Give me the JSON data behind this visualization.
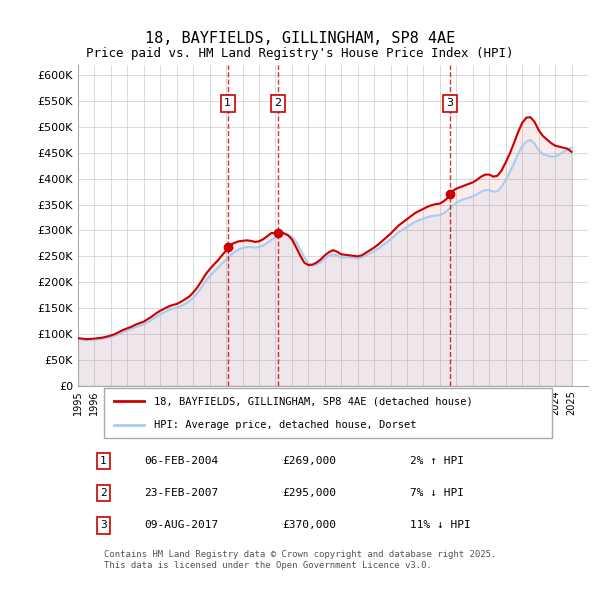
{
  "title": "18, BAYFIELDS, GILLINGHAM, SP8 4AE",
  "subtitle": "Price paid vs. HM Land Registry's House Price Index (HPI)",
  "ylabel": "",
  "xlabel": "",
  "ylim": [
    0,
    620000
  ],
  "yticks": [
    0,
    50000,
    100000,
    150000,
    200000,
    250000,
    300000,
    350000,
    400000,
    450000,
    500000,
    550000,
    600000
  ],
  "ytick_labels": [
    "£0",
    "£50K",
    "£100K",
    "£150K",
    "£200K",
    "£250K",
    "£300K",
    "£350K",
    "£400K",
    "£450K",
    "£500K",
    "£550K",
    "£600K"
  ],
  "xlim_start": 1995.0,
  "xlim_end": 2026.0,
  "legend_property": "18, BAYFIELDS, GILLINGHAM, SP8 4AE (detached house)",
  "legend_hpi": "HPI: Average price, detached house, Dorset",
  "property_line_color": "#cc0000",
  "hpi_line_color": "#aaccee",
  "sales": [
    {
      "num": 1,
      "date": "06-FEB-2004",
      "year": 2004.1,
      "price": 269000,
      "pct": "2%",
      "dir": "↑"
    },
    {
      "num": 2,
      "date": "23-FEB-2007",
      "year": 2007.15,
      "price": 295000,
      "pct": "7%",
      "dir": "↓"
    },
    {
      "num": 3,
      "date": "09-AUG-2017",
      "year": 2017.6,
      "price": 370000,
      "pct": "11%",
      "dir": "↓"
    }
  ],
  "footer": "Contains HM Land Registry data © Crown copyright and database right 2025.\nThis data is licensed under the Open Government Licence v3.0.",
  "background_color": "#ffffff",
  "grid_color": "#cccccc",
  "hpi_data": {
    "years": [
      1995.0,
      1995.25,
      1995.5,
      1995.75,
      1996.0,
      1996.25,
      1996.5,
      1996.75,
      1997.0,
      1997.25,
      1997.5,
      1997.75,
      1998.0,
      1998.25,
      1998.5,
      1998.75,
      1999.0,
      1999.25,
      1999.5,
      1999.75,
      2000.0,
      2000.25,
      2000.5,
      2000.75,
      2001.0,
      2001.25,
      2001.5,
      2001.75,
      2002.0,
      2002.25,
      2002.5,
      2002.75,
      2003.0,
      2003.25,
      2003.5,
      2003.75,
      2004.0,
      2004.25,
      2004.5,
      2004.75,
      2005.0,
      2005.25,
      2005.5,
      2005.75,
      2006.0,
      2006.25,
      2006.5,
      2006.75,
      2007.0,
      2007.25,
      2007.5,
      2007.75,
      2008.0,
      2008.25,
      2008.5,
      2008.75,
      2009.0,
      2009.25,
      2009.5,
      2009.75,
      2010.0,
      2010.25,
      2010.5,
      2010.75,
      2011.0,
      2011.25,
      2011.5,
      2011.75,
      2012.0,
      2012.25,
      2012.5,
      2012.75,
      2013.0,
      2013.25,
      2013.5,
      2013.75,
      2014.0,
      2014.25,
      2014.5,
      2014.75,
      2015.0,
      2015.25,
      2015.5,
      2015.75,
      2016.0,
      2016.25,
      2016.5,
      2016.75,
      2017.0,
      2017.25,
      2017.5,
      2017.75,
      2018.0,
      2018.25,
      2018.5,
      2018.75,
      2019.0,
      2019.25,
      2019.5,
      2019.75,
      2020.0,
      2020.25,
      2020.5,
      2020.75,
      2021.0,
      2021.25,
      2021.5,
      2021.75,
      2022.0,
      2022.25,
      2022.5,
      2022.75,
      2023.0,
      2023.25,
      2023.5,
      2023.75,
      2024.0,
      2024.25,
      2024.5,
      2024.75,
      2025.0
    ],
    "values": [
      90000,
      89000,
      88000,
      88500,
      89000,
      90000,
      91000,
      92000,
      94000,
      97000,
      100000,
      104000,
      107000,
      110000,
      113000,
      116000,
      119000,
      123000,
      128000,
      133000,
      138000,
      142000,
      146000,
      149000,
      151000,
      154000,
      158000,
      163000,
      170000,
      179000,
      190000,
      202000,
      212000,
      220000,
      228000,
      236000,
      244000,
      252000,
      258000,
      263000,
      266000,
      268000,
      268000,
      267000,
      268000,
      271000,
      276000,
      282000,
      287000,
      291000,
      293000,
      292000,
      288000,
      279000,
      264000,
      249000,
      237000,
      233000,
      234000,
      239000,
      246000,
      251000,
      254000,
      252000,
      248000,
      248000,
      248000,
      247000,
      246000,
      248000,
      252000,
      256000,
      260000,
      265000,
      271000,
      277000,
      283000,
      290000,
      297000,
      302000,
      307000,
      312000,
      317000,
      320000,
      323000,
      326000,
      328000,
      329000,
      330000,
      334000,
      340000,
      347000,
      354000,
      358000,
      361000,
      363000,
      366000,
      370000,
      375000,
      378000,
      378000,
      375000,
      376000,
      385000,
      398000,
      413000,
      430000,
      448000,
      463000,
      472000,
      475000,
      468000,
      455000,
      448000,
      445000,
      443000,
      443000,
      447000,
      452000,
      456000,
      460000
    ]
  },
  "property_data": {
    "years": [
      1995.0,
      1995.25,
      1995.5,
      1995.75,
      1996.0,
      1996.25,
      1996.5,
      1996.75,
      1997.0,
      1997.25,
      1997.5,
      1997.75,
      1998.0,
      1998.25,
      1998.5,
      1998.75,
      1999.0,
      1999.25,
      1999.5,
      1999.75,
      2000.0,
      2000.25,
      2000.5,
      2000.75,
      2001.0,
      2001.25,
      2001.5,
      2001.75,
      2002.0,
      2002.25,
      2002.5,
      2002.75,
      2003.0,
      2003.25,
      2003.5,
      2003.75,
      2004.0,
      2004.1,
      2004.25,
      2004.5,
      2004.75,
      2005.0,
      2005.25,
      2005.5,
      2005.75,
      2006.0,
      2006.25,
      2006.5,
      2006.75,
      2007.0,
      2007.15,
      2007.25,
      2007.5,
      2007.75,
      2008.0,
      2008.25,
      2008.5,
      2008.75,
      2009.0,
      2009.25,
      2009.5,
      2009.75,
      2010.0,
      2010.25,
      2010.5,
      2010.75,
      2011.0,
      2011.25,
      2011.5,
      2011.75,
      2012.0,
      2012.25,
      2012.5,
      2012.75,
      2013.0,
      2013.25,
      2013.5,
      2013.75,
      2014.0,
      2014.25,
      2014.5,
      2014.75,
      2015.0,
      2015.25,
      2015.5,
      2015.75,
      2016.0,
      2016.25,
      2016.5,
      2016.75,
      2017.0,
      2017.25,
      2017.5,
      2017.6,
      2017.75,
      2018.0,
      2018.25,
      2018.5,
      2018.75,
      2019.0,
      2019.25,
      2019.5,
      2019.75,
      2020.0,
      2020.25,
      2020.5,
      2020.75,
      2021.0,
      2021.25,
      2021.5,
      2021.75,
      2022.0,
      2022.25,
      2022.5,
      2022.75,
      2023.0,
      2023.25,
      2023.5,
      2023.75,
      2024.0,
      2024.25,
      2024.5,
      2024.75,
      2025.0
    ],
    "values": [
      92000,
      91000,
      90000,
      90500,
      91000,
      92000,
      93000,
      95000,
      97000,
      100000,
      104000,
      108000,
      111000,
      114000,
      118000,
      121000,
      124000,
      129000,
      134000,
      140000,
      145000,
      149000,
      153000,
      156000,
      158000,
      162000,
      167000,
      172000,
      180000,
      190000,
      202000,
      215000,
      225000,
      234000,
      242000,
      252000,
      261000,
      269000,
      272000,
      276000,
      279000,
      280000,
      281000,
      280000,
      278000,
      279000,
      283000,
      289000,
      295000,
      295000,
      295000,
      297000,
      295000,
      291000,
      283000,
      268000,
      252000,
      238000,
      233000,
      234000,
      238000,
      244000,
      252000,
      258000,
      262000,
      259000,
      254000,
      253000,
      252000,
      251000,
      250000,
      252000,
      257000,
      262000,
      267000,
      273000,
      280000,
      287000,
      294000,
      302000,
      310000,
      316000,
      322000,
      328000,
      334000,
      338000,
      342000,
      346000,
      349000,
      351000,
      352000,
      357000,
      364000,
      370000,
      376000,
      381000,
      384000,
      387000,
      390000,
      393000,
      398000,
      404000,
      408000,
      408000,
      404000,
      406000,
      416000,
      432000,
      449000,
      469000,
      490000,
      508000,
      518000,
      519000,
      510000,
      494000,
      483000,
      476000,
      469000,
      464000,
      462000,
      460000,
      458000,
      452000
    ]
  }
}
